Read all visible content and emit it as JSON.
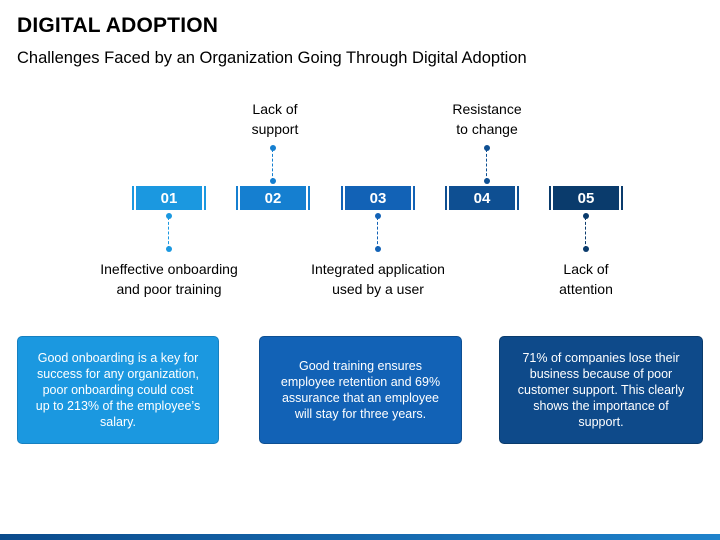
{
  "title": "DIGITAL ADOPTION",
  "subtitle": "Challenges Faced by an Organization Going Through Digital Adoption",
  "steps": [
    {
      "number": "01",
      "label": "Ineffective onboarding and poor training",
      "color": "#1b98e0"
    },
    {
      "number": "02",
      "label": "Lack of support",
      "color": "#157fd0"
    },
    {
      "number": "03",
      "label": "Integrated application used by a user",
      "color": "#1262b6"
    },
    {
      "number": "04",
      "label": "Resistance to change",
      "color": "#0e4f92"
    },
    {
      "number": "05",
      "label": "Lack of attention",
      "color": "#0a3b6c"
    }
  ],
  "cards": [
    {
      "text": "Good onboarding is a key for success for any organization, poor onboarding could cost up to 213% of the employee’s salary.",
      "color": "#1b98e0"
    },
    {
      "text": "Good training ensures employee retention and 69% assurance that an employee will stay for three years.",
      "color": "#1262b6"
    },
    {
      "text": "71% of companies lose their business because of poor customer support. This clearly shows the importance of support.",
      "color": "#0e4a8a"
    }
  ]
}
